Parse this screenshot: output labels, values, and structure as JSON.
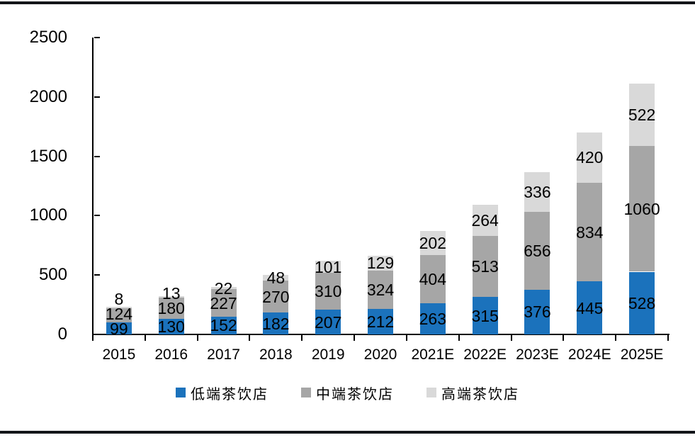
{
  "chart_data": {
    "type": "bar",
    "stacked": true,
    "title": "",
    "xlabel": "",
    "ylabel": "",
    "ylim": [
      0,
      2500
    ],
    "yticks": [
      0,
      500,
      1000,
      1500,
      2000,
      2500
    ],
    "grid": false,
    "legend_position": "bottom",
    "categories": [
      "2015",
      "2016",
      "2017",
      "2018",
      "2019",
      "2020",
      "2021E",
      "2022E",
      "2023E",
      "2024E",
      "2025E"
    ],
    "series": [
      {
        "key": "low-end-tea-shop",
        "name": "低端茶饮店",
        "color": "#1B72BC",
        "values": [
          99,
          130,
          152,
          182,
          207,
          212,
          263,
          315,
          376,
          445,
          528
        ]
      },
      {
        "key": "mid-end-tea-shop",
        "name": "中端茶饮店",
        "color": "#A6A6A6",
        "values": [
          124,
          180,
          227,
          270,
          310,
          324,
          404,
          513,
          656,
          834,
          1060
        ]
      },
      {
        "key": "high-end-tea-shop",
        "name": "高端茶饮店",
        "color": "#D9D9D9",
        "values": [
          8,
          13,
          22,
          48,
          101,
          129,
          202,
          264,
          336,
          420,
          522
        ]
      }
    ]
  },
  "colors": {
    "background": "#FFFFFF",
    "axis": "#000000",
    "data_label": "#000000",
    "rule": "#14161A"
  }
}
